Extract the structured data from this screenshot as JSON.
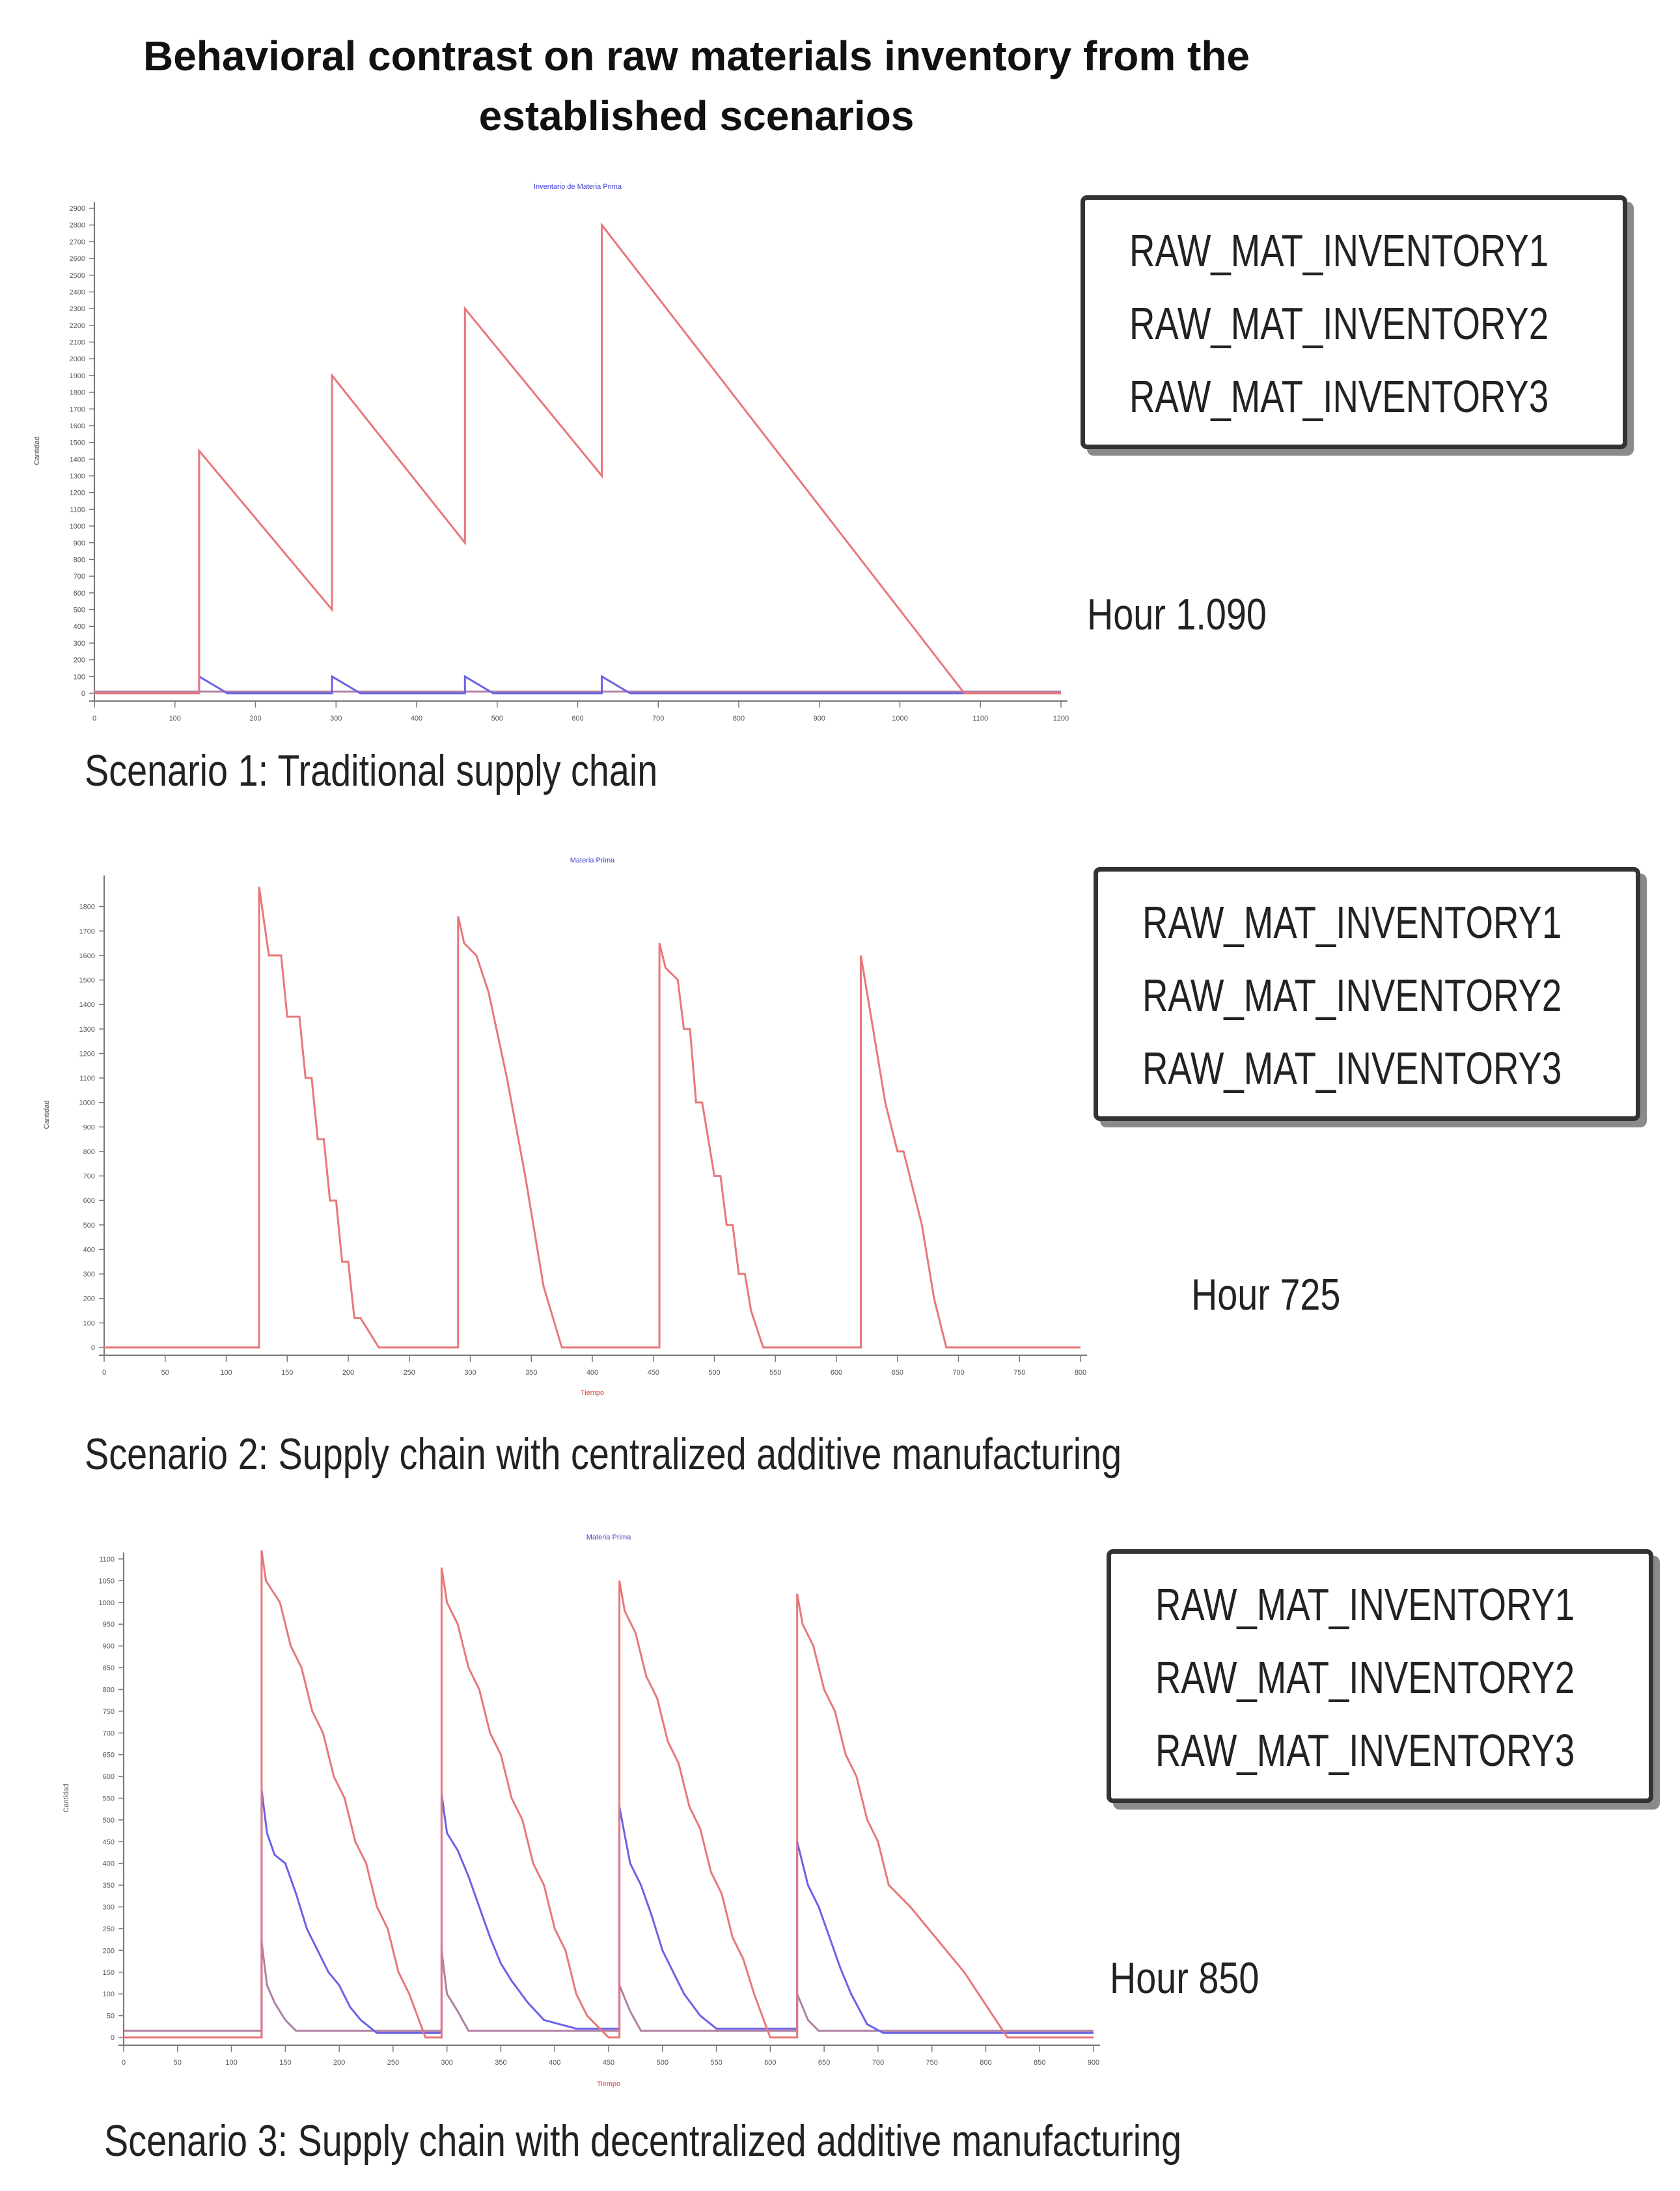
{
  "title_line1": "Behavioral contrast on raw materials inventory from the",
  "title_line2": "established scenarios",
  "colors": {
    "series1": "#e8777a",
    "series2": "#6a63e6",
    "series3": "#b07fa3",
    "axis": "#777777",
    "plot_title": "#3a3ad0"
  },
  "panels": [
    {
      "caption": "Scenario 1: Traditional supply chain",
      "hour_label": "Hour 1.090",
      "legend": [
        "RAW_MAT_INVENTORY1",
        "RAW_MAT_INVENTORY2",
        "RAW_MAT_INVENTORY3"
      ]
    },
    {
      "caption": "Scenario 2: Supply chain with centralized additive manufacturing",
      "hour_label": "Hour 725",
      "legend": [
        "RAW_MAT_INVENTORY1",
        "RAW_MAT_INVENTORY2",
        "RAW_MAT_INVENTORY3"
      ]
    },
    {
      "caption": "Scenario 3: Supply chain with decentralized additive manufacturing",
      "hour_label": "Hour 850",
      "legend": [
        "RAW_MAT_INVENTORY1",
        "RAW_MAT_INVENTORY2",
        "RAW_MAT_INVENTORY3"
      ]
    }
  ],
  "chart_data": [
    {
      "type": "line",
      "title": "Inventario de Materia Prima",
      "xlabel": "",
      "ylabel": "Cantidad",
      "xlim": [
        0,
        1200
      ],
      "ylim": [
        0,
        2900
      ],
      "x_ticks": [
        0,
        100,
        200,
        300,
        400,
        500,
        600,
        700,
        800,
        900,
        1000,
        1100,
        1200
      ],
      "y_ticks": [
        0,
        100,
        200,
        300,
        400,
        500,
        600,
        700,
        800,
        900,
        1000,
        1100,
        1200,
        1300,
        1400,
        1500,
        1600,
        1700,
        1800,
        1900,
        2000,
        2100,
        2200,
        2300,
        2400,
        2500,
        2600,
        2700,
        2800,
        2900
      ],
      "series": [
        {
          "name": "RAW_MAT_INVENTORY1",
          "color": "#e8777a",
          "points": [
            [
              0,
              0
            ],
            [
              130,
              0
            ],
            [
              130,
              1450
            ],
            [
              295,
              500
            ],
            [
              295,
              1900
            ],
            [
              460,
              900
            ],
            [
              460,
              2300
            ],
            [
              630,
              1300
            ],
            [
              630,
              2800
            ],
            [
              1080,
              0
            ],
            [
              1200,
              0
            ]
          ]
        },
        {
          "name": "RAW_MAT_INVENTORY2",
          "color": "#6a63e6",
          "points": [
            [
              0,
              0
            ],
            [
              130,
              0
            ],
            [
              130,
              100
            ],
            [
              165,
              0
            ],
            [
              295,
              0
            ],
            [
              295,
              100
            ],
            [
              330,
              0
            ],
            [
              460,
              0
            ],
            [
              460,
              100
            ],
            [
              495,
              0
            ],
            [
              630,
              0
            ],
            [
              630,
              100
            ],
            [
              665,
              0
            ],
            [
              1200,
              0
            ]
          ]
        },
        {
          "name": "RAW_MAT_INVENTORY3",
          "color": "#b07fa3",
          "points": [
            [
              0,
              10
            ],
            [
              1200,
              10
            ]
          ]
        }
      ]
    },
    {
      "type": "line",
      "title": "Materia Prima",
      "xlabel": "Tiempo",
      "ylabel": "Cantidad",
      "xlim": [
        0,
        800
      ],
      "ylim": [
        0,
        1900
      ],
      "x_ticks": [
        0,
        50,
        100,
        150,
        200,
        250,
        300,
        350,
        400,
        450,
        500,
        550,
        600,
        650,
        700,
        750,
        800
      ],
      "y_ticks": [
        0,
        100,
        200,
        300,
        400,
        500,
        600,
        700,
        800,
        900,
        1000,
        1100,
        1200,
        1300,
        1400,
        1500,
        1600,
        1700,
        1800
      ],
      "series": [
        {
          "name": "RAW_MAT_INVENTORY1",
          "color": "#e8777a",
          "points": [
            [
              0,
              0
            ],
            [
              127,
              0
            ],
            [
              127,
              1880
            ],
            [
              135,
              1600
            ],
            [
              145,
              1600
            ],
            [
              150,
              1350
            ],
            [
              160,
              1350
            ],
            [
              165,
              1100
            ],
            [
              170,
              1100
            ],
            [
              175,
              850
            ],
            [
              180,
              850
            ],
            [
              185,
              600
            ],
            [
              190,
              600
            ],
            [
              195,
              350
            ],
            [
              200,
              350
            ],
            [
              205,
              120
            ],
            [
              210,
              120
            ],
            [
              225,
              0
            ],
            [
              290,
              0
            ],
            [
              290,
              1760
            ],
            [
              295,
              1650
            ],
            [
              305,
              1600
            ],
            [
              315,
              1450
            ],
            [
              330,
              1100
            ],
            [
              345,
              700
            ],
            [
              360,
              250
            ],
            [
              375,
              0
            ],
            [
              455,
              0
            ],
            [
              455,
              1650
            ],
            [
              460,
              1550
            ],
            [
              470,
              1500
            ],
            [
              475,
              1300
            ],
            [
              480,
              1300
            ],
            [
              485,
              1000
            ],
            [
              490,
              1000
            ],
            [
              500,
              700
            ],
            [
              505,
              700
            ],
            [
              510,
              500
            ],
            [
              515,
              500
            ],
            [
              520,
              300
            ],
            [
              525,
              300
            ],
            [
              530,
              150
            ],
            [
              540,
              0
            ],
            [
              620,
              0
            ],
            [
              620,
              1600
            ],
            [
              630,
              1300
            ],
            [
              640,
              1000
            ],
            [
              650,
              800
            ],
            [
              655,
              800
            ],
            [
              665,
              600
            ],
            [
              670,
              500
            ],
            [
              680,
              200
            ],
            [
              690,
              0
            ],
            [
              800,
              0
            ]
          ]
        },
        {
          "name": "RAW_MAT_INVENTORY2",
          "color": "#6a63e6",
          "points": []
        },
        {
          "name": "RAW_MAT_INVENTORY3",
          "color": "#b07fa3",
          "points": []
        }
      ]
    },
    {
      "type": "line",
      "title": "Materia Prima",
      "xlabel": "Tiempo",
      "ylabel": "Cantidad",
      "xlim": [
        0,
        900
      ],
      "ylim": [
        0,
        1100
      ],
      "x_ticks": [
        0,
        50,
        100,
        150,
        200,
        250,
        300,
        350,
        400,
        450,
        500,
        550,
        600,
        650,
        700,
        750,
        800,
        850,
        900
      ],
      "y_ticks": [
        0,
        50,
        100,
        150,
        200,
        250,
        300,
        350,
        400,
        450,
        500,
        550,
        600,
        650,
        700,
        750,
        800,
        850,
        900,
        950,
        1000,
        1050,
        1100
      ],
      "series": [
        {
          "name": "RAW_MAT_INVENTORY1",
          "color": "#e8777a",
          "points": [
            [
              0,
              0
            ],
            [
              128,
              0
            ],
            [
              128,
              1120
            ],
            [
              132,
              1050
            ],
            [
              145,
              1000
            ],
            [
              155,
              900
            ],
            [
              165,
              850
            ],
            [
              175,
              750
            ],
            [
              185,
              700
            ],
            [
              195,
              600
            ],
            [
              205,
              550
            ],
            [
              215,
              450
            ],
            [
              225,
              400
            ],
            [
              235,
              300
            ],
            [
              245,
              250
            ],
            [
              255,
              150
            ],
            [
              265,
              100
            ],
            [
              280,
              0
            ],
            [
              295,
              0
            ],
            [
              295,
              1080
            ],
            [
              300,
              1000
            ],
            [
              310,
              950
            ],
            [
              320,
              850
            ],
            [
              330,
              800
            ],
            [
              340,
              700
            ],
            [
              350,
              650
            ],
            [
              360,
              550
            ],
            [
              370,
              500
            ],
            [
              380,
              400
            ],
            [
              390,
              350
            ],
            [
              400,
              250
            ],
            [
              410,
              200
            ],
            [
              420,
              100
            ],
            [
              430,
              50
            ],
            [
              450,
              0
            ],
            [
              460,
              0
            ],
            [
              460,
              1050
            ],
            [
              465,
              980
            ],
            [
              475,
              930
            ],
            [
              485,
              830
            ],
            [
              495,
              780
            ],
            [
              505,
              680
            ],
            [
              515,
              630
            ],
            [
              525,
              530
            ],
            [
              535,
              480
            ],
            [
              545,
              380
            ],
            [
              555,
              330
            ],
            [
              565,
              230
            ],
            [
              575,
              180
            ],
            [
              585,
              100
            ],
            [
              600,
              0
            ],
            [
              625,
              0
            ],
            [
              625,
              1020
            ],
            [
              630,
              950
            ],
            [
              640,
              900
            ],
            [
              650,
              800
            ],
            [
              660,
              750
            ],
            [
              670,
              650
            ],
            [
              680,
              600
            ],
            [
              690,
              500
            ],
            [
              700,
              450
            ],
            [
              710,
              350
            ],
            [
              730,
              300
            ],
            [
              780,
              150
            ],
            [
              820,
              0
            ],
            [
              900,
              0
            ]
          ]
        },
        {
          "name": "RAW_MAT_INVENTORY2",
          "color": "#6a63e6",
          "points": [
            [
              0,
              0
            ],
            [
              128,
              0
            ],
            [
              128,
              570
            ],
            [
              133,
              470
            ],
            [
              140,
              420
            ],
            [
              150,
              400
            ],
            [
              160,
              330
            ],
            [
              170,
              250
            ],
            [
              180,
              200
            ],
            [
              190,
              150
            ],
            [
              200,
              120
            ],
            [
              210,
              70
            ],
            [
              220,
              40
            ],
            [
              235,
              10
            ],
            [
              295,
              10
            ],
            [
              295,
              560
            ],
            [
              300,
              470
            ],
            [
              310,
              430
            ],
            [
              320,
              370
            ],
            [
              330,
              300
            ],
            [
              340,
              230
            ],
            [
              350,
              170
            ],
            [
              360,
              130
            ],
            [
              375,
              80
            ],
            [
              390,
              40
            ],
            [
              420,
              20
            ],
            [
              460,
              20
            ],
            [
              460,
              530
            ],
            [
              470,
              400
            ],
            [
              480,
              350
            ],
            [
              490,
              280
            ],
            [
              500,
              200
            ],
            [
              510,
              150
            ],
            [
              520,
              100
            ],
            [
              535,
              50
            ],
            [
              550,
              20
            ],
            [
              625,
              20
            ],
            [
              625,
              450
            ],
            [
              635,
              350
            ],
            [
              645,
              300
            ],
            [
              655,
              230
            ],
            [
              665,
              160
            ],
            [
              675,
              100
            ],
            [
              690,
              30
            ],
            [
              705,
              10
            ],
            [
              900,
              10
            ]
          ]
        },
        {
          "name": "RAW_MAT_INVENTORY3",
          "color": "#b07fa3",
          "points": [
            [
              0,
              15
            ],
            [
              128,
              15
            ],
            [
              128,
              220
            ],
            [
              133,
              120
            ],
            [
              140,
              80
            ],
            [
              150,
              40
            ],
            [
              160,
              15
            ],
            [
              295,
              15
            ],
            [
              295,
              200
            ],
            [
              300,
              100
            ],
            [
              310,
              60
            ],
            [
              320,
              15
            ],
            [
              460,
              15
            ],
            [
              460,
              120
            ],
            [
              470,
              60
            ],
            [
              480,
              15
            ],
            [
              625,
              15
            ],
            [
              625,
              100
            ],
            [
              635,
              40
            ],
            [
              645,
              15
            ],
            [
              900,
              15
            ]
          ]
        }
      ]
    }
  ]
}
